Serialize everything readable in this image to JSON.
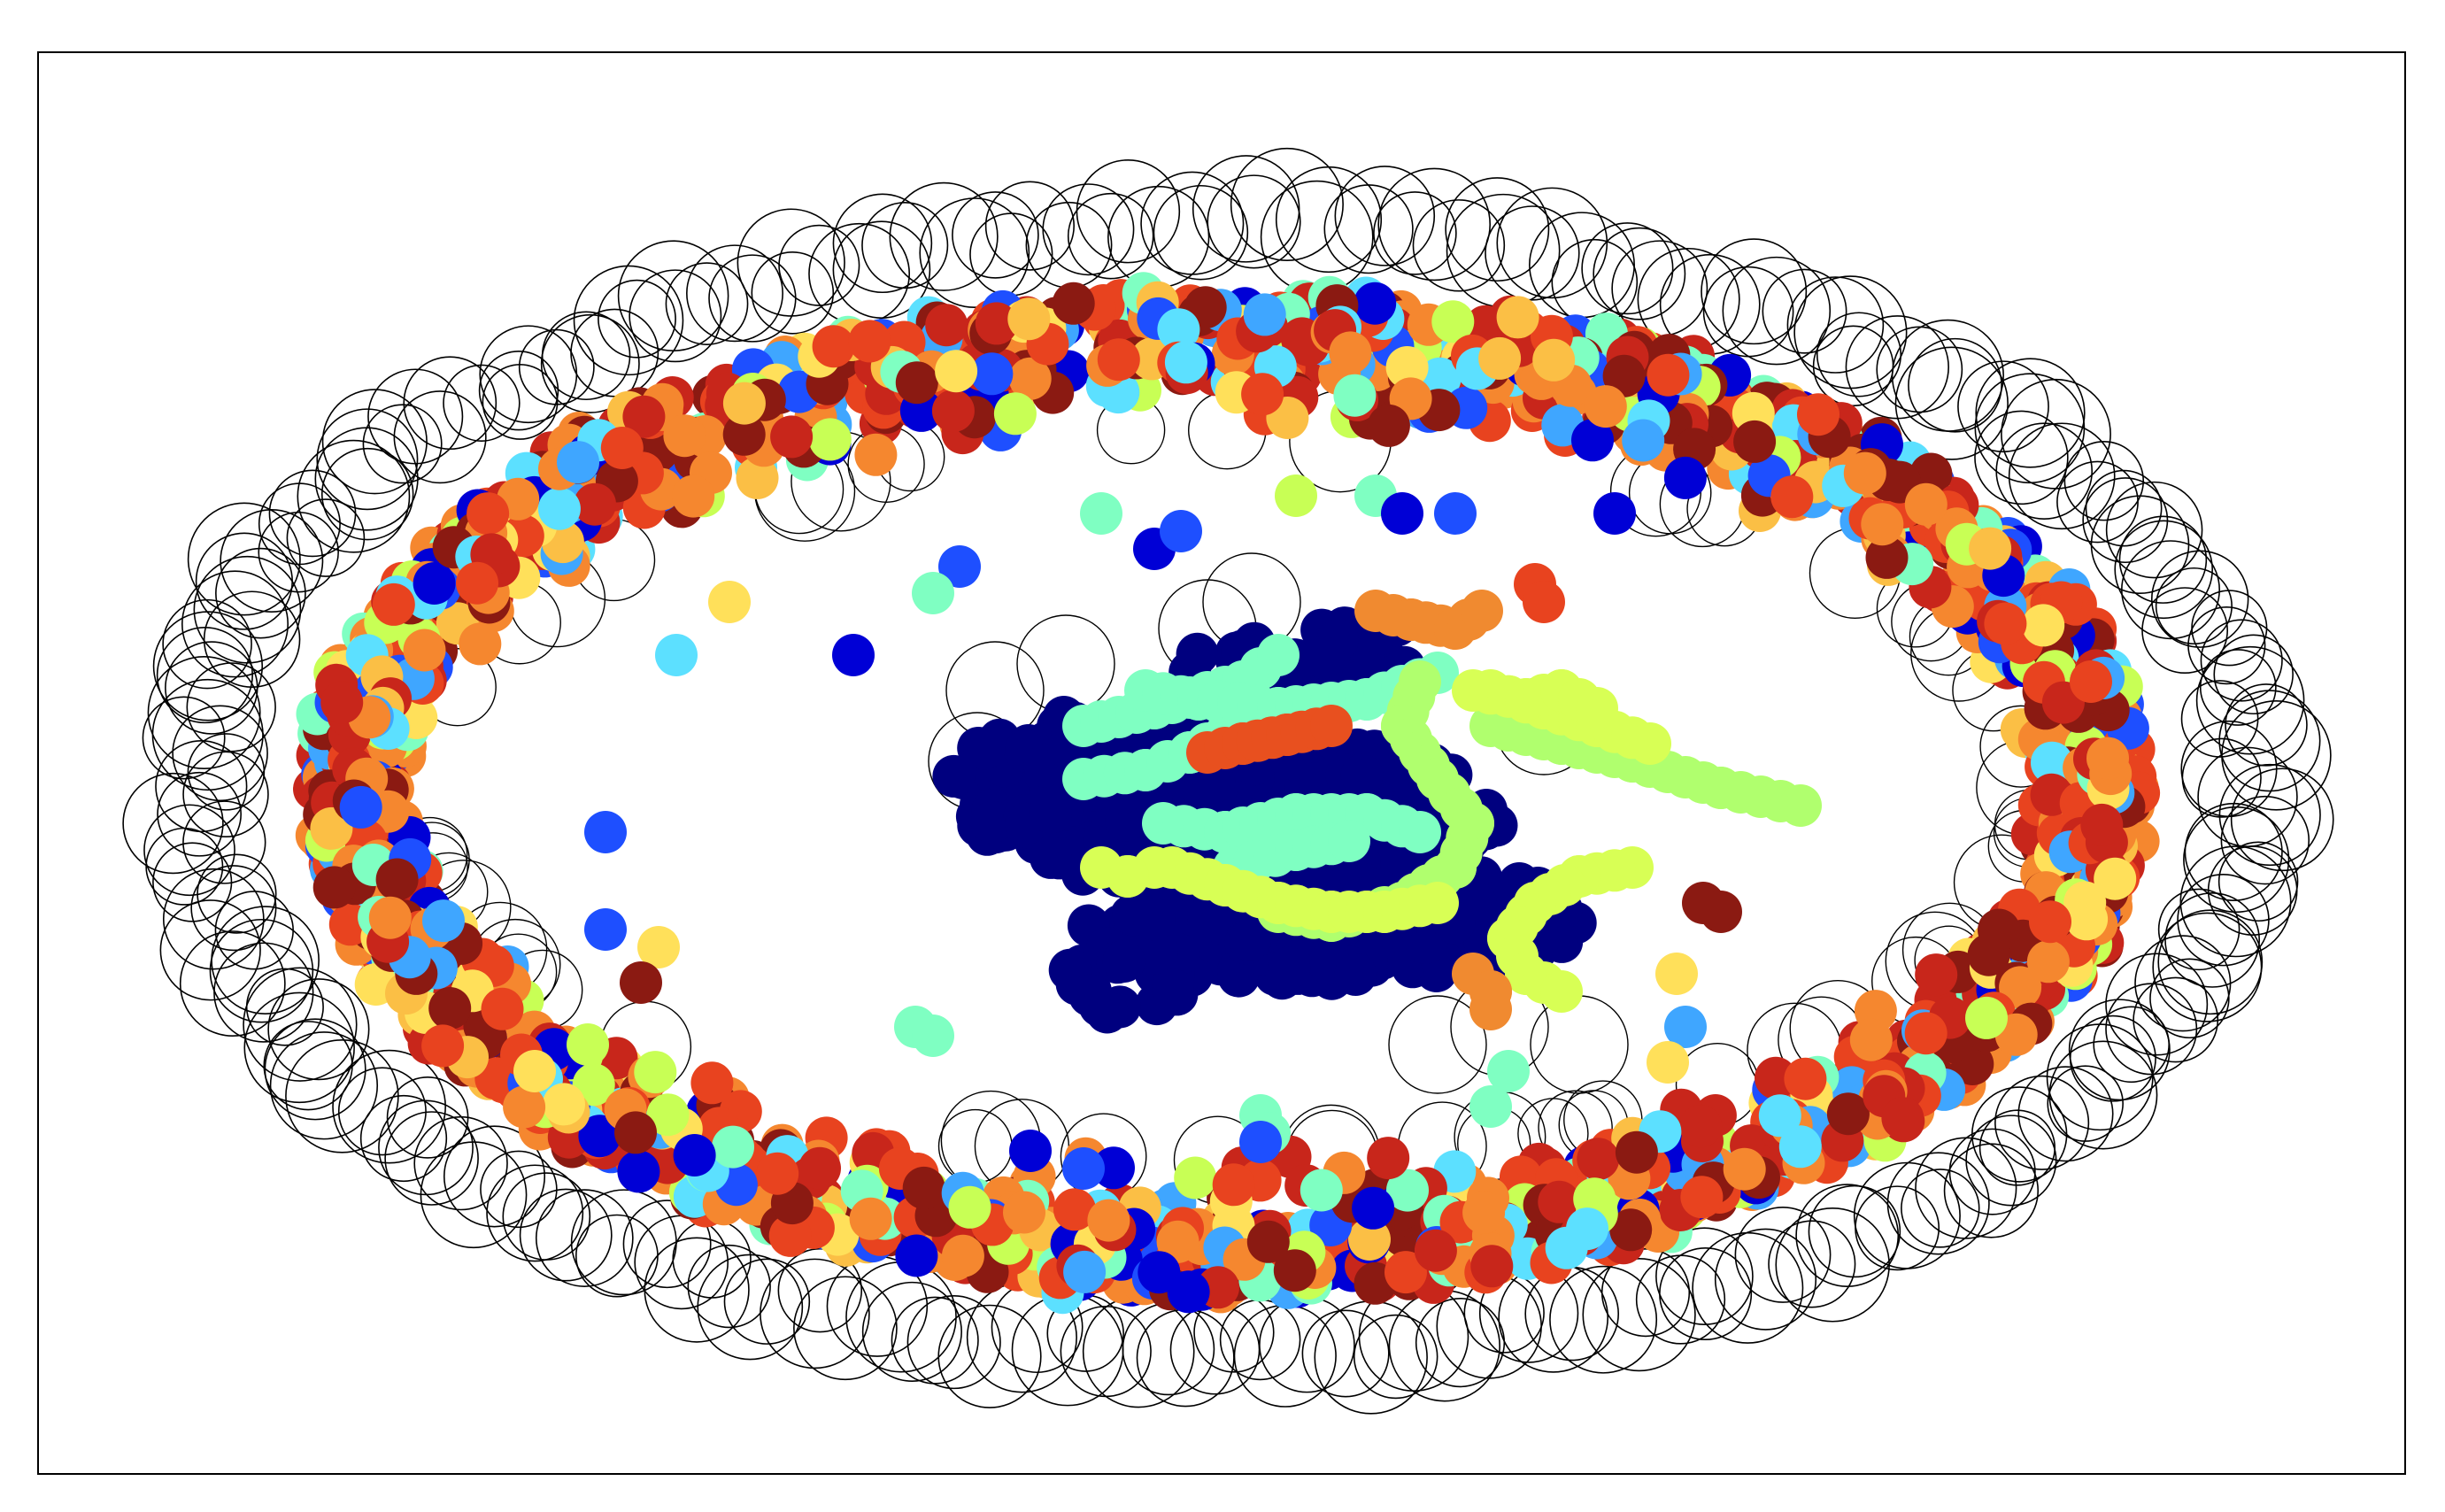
{
  "figure": {
    "kind": "network-graph",
    "axes_visible": false,
    "frame_visible": true,
    "background": "#ffffff"
  },
  "colormap": {
    "name": "jet",
    "stops": [
      "#00007f",
      "#0000d6",
      "#0050ff",
      "#00bfff",
      "#4dffb0",
      "#b0ff4d",
      "#ffe000",
      "#ff7a00",
      "#e31a00",
      "#7f0000"
    ]
  },
  "graph": {
    "layout_shape": "annular ring of nodes around a dense central cluster",
    "edge_color": "#000000",
    "edge_style": "self-loop circles along outer ring",
    "node_colors": {
      "central_cluster": "#00007f",
      "central_chains": [
        "#7fffc2",
        "#b0ff6e",
        "#d8ff55",
        "#e8501f",
        "#f08a30"
      ],
      "outer_ring": [
        "#0000d6",
        "#1e4fff",
        "#3fa6ff",
        "#5ce0ff",
        "#7fffc2",
        "#c8ff55",
        "#ffe05a",
        "#fbbf45",
        "#f5872f",
        "#e8431f",
        "#c8261b",
        "#8b1a12"
      ]
    }
  }
}
